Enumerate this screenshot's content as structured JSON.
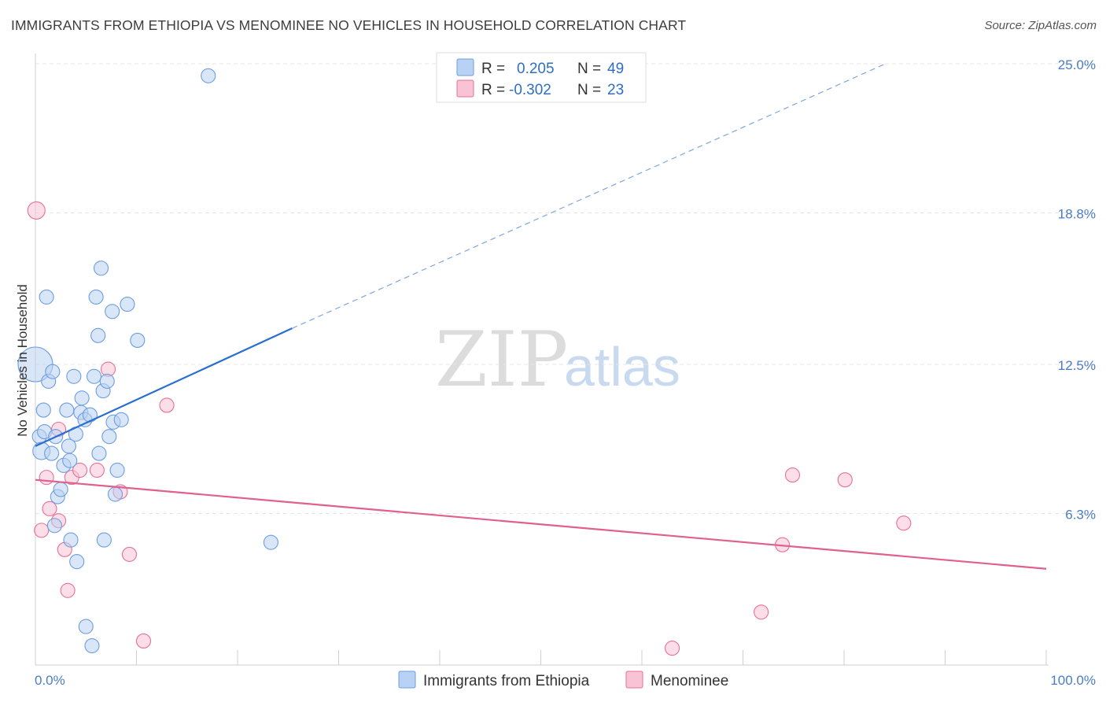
{
  "title": "IMMIGRANTS FROM ETHIOPIA VS MENOMINEE NO VEHICLES IN HOUSEHOLD CORRELATION CHART",
  "source": "Source: ZipAtlas.com",
  "watermark": {
    "part1": "ZIP",
    "part2": "atlas"
  },
  "legend": {
    "r_label": "R =",
    "n_label": "N =",
    "rows": [
      {
        "r": "0.205",
        "n": "49",
        "color": "#a9c8f0"
      },
      {
        "r": "-0.302",
        "n": "23",
        "color": "#f7bcd0"
      }
    ]
  },
  "chart_data": {
    "type": "scatter",
    "title": "IMMIGRANTS FROM ETHIOPIA VS MENOMINEE NO VEHICLES IN HOUSEHOLD CORRELATION CHART",
    "xlabel": "",
    "ylabel": "No Vehicles in Household",
    "xlim": [
      0,
      100
    ],
    "ylim": [
      0,
      26
    ],
    "x_tick_labels": {
      "min": "0.0%",
      "max": "100.0%"
    },
    "y_ticks": [
      6.3,
      12.5,
      18.8,
      25.0
    ],
    "y_tick_labels": [
      "6.3%",
      "12.5%",
      "18.8%",
      "25.0%"
    ],
    "grid": true,
    "legend_position": "top-center",
    "series": [
      {
        "name": "Immigrants from Ethiopia",
        "color": "#6c9de0",
        "fill": "#b9d1f2",
        "trend": {
          "x0": 0,
          "y0": 9.1,
          "x1": 25.4,
          "y1": 14.0,
          "dashed_to_x": 84.1,
          "dashed_to_y": 25.0
        },
        "points": [
          [
            0.0,
            12.5,
            22
          ],
          [
            0.4,
            9.5,
            9
          ],
          [
            0.6,
            8.9,
            11
          ],
          [
            0.8,
            10.6,
            9
          ],
          [
            0.9,
            9.7,
            9
          ],
          [
            1.1,
            15.3,
            9
          ],
          [
            1.3,
            11.8,
            9
          ],
          [
            1.6,
            8.8,
            9
          ],
          [
            1.7,
            12.2,
            9
          ],
          [
            1.9,
            5.8,
            9
          ],
          [
            2.0,
            9.5,
            9
          ],
          [
            2.2,
            7.0,
            9
          ],
          [
            2.5,
            7.3,
            9
          ],
          [
            2.8,
            8.3,
            9
          ],
          [
            3.1,
            10.6,
            9
          ],
          [
            3.3,
            9.1,
            9
          ],
          [
            3.4,
            8.5,
            9
          ],
          [
            3.5,
            5.2,
            9
          ],
          [
            3.8,
            12.0,
            9
          ],
          [
            4.0,
            9.6,
            9
          ],
          [
            4.1,
            4.3,
            9
          ],
          [
            4.5,
            10.5,
            9
          ],
          [
            4.6,
            11.1,
            9
          ],
          [
            4.9,
            10.2,
            9
          ],
          [
            5.0,
            1.6,
            9
          ],
          [
            5.4,
            10.4,
            9
          ],
          [
            5.6,
            0.8,
            9
          ],
          [
            5.8,
            12.0,
            9
          ],
          [
            6.0,
            15.3,
            9
          ],
          [
            6.2,
            13.7,
            9
          ],
          [
            6.3,
            8.8,
            9
          ],
          [
            6.5,
            16.5,
            9
          ],
          [
            6.7,
            11.4,
            9
          ],
          [
            6.8,
            5.2,
            9
          ],
          [
            7.1,
            11.8,
            9
          ],
          [
            7.3,
            9.5,
            9
          ],
          [
            7.6,
            14.7,
            9
          ],
          [
            7.7,
            10.1,
            9
          ],
          [
            7.9,
            7.1,
            9
          ],
          [
            8.1,
            8.1,
            9
          ],
          [
            8.5,
            10.2,
            9
          ],
          [
            9.1,
            15.0,
            9
          ],
          [
            10.1,
            13.5,
            9
          ],
          [
            17.1,
            24.5,
            9
          ],
          [
            23.3,
            5.1,
            9
          ]
        ]
      },
      {
        "name": "Menominee",
        "color": "#e76f98",
        "fill": "#f8c3d5",
        "trend": {
          "x0": 0,
          "y0": 7.7,
          "x1": 100,
          "y1": 4.0
        },
        "points": [
          [
            0.1,
            18.9,
            11
          ],
          [
            0.6,
            5.6,
            9
          ],
          [
            1.1,
            7.8,
            9
          ],
          [
            1.4,
            6.5,
            9
          ],
          [
            2.3,
            6.0,
            9
          ],
          [
            2.3,
            9.8,
            9
          ],
          [
            2.9,
            4.8,
            9
          ],
          [
            3.2,
            3.1,
            9
          ],
          [
            3.6,
            7.8,
            9
          ],
          [
            4.4,
            8.1,
            9
          ],
          [
            6.1,
            8.1,
            9
          ],
          [
            7.2,
            12.3,
            9
          ],
          [
            8.4,
            7.2,
            9
          ],
          [
            9.3,
            4.6,
            9
          ],
          [
            10.7,
            1.0,
            9
          ],
          [
            13.0,
            10.8,
            9
          ],
          [
            63.0,
            0.7,
            9
          ],
          [
            73.9,
            5.0,
            9
          ],
          [
            71.8,
            2.2,
            9
          ],
          [
            74.9,
            7.9,
            9
          ],
          [
            80.1,
            7.7,
            9
          ],
          [
            85.9,
            5.9,
            9
          ]
        ]
      }
    ]
  }
}
